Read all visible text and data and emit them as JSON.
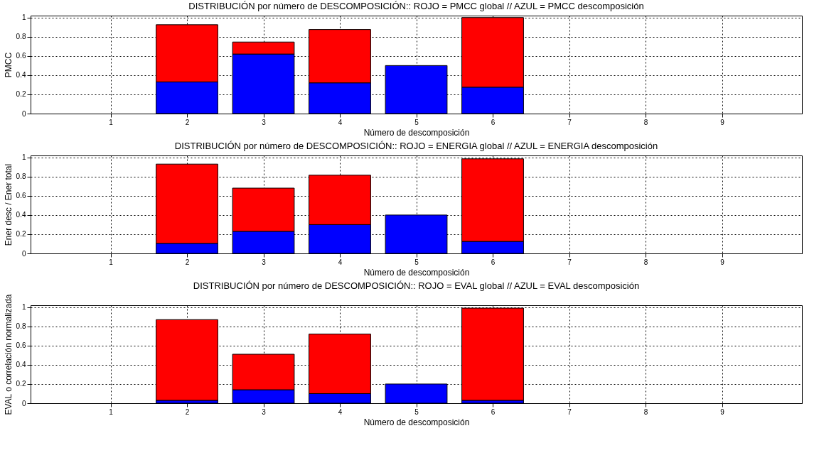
{
  "chart_data": [
    {
      "type": "bar",
      "title": "DISTRIBUCIÓN por número de DESCOMPOSICIÓN:: ROJO = PMCC global // AZUL = PMCC descomposición",
      "xlabel": "Número de descomposición",
      "ylabel": "PMCC",
      "stacked": true,
      "x": [
        2,
        3,
        4,
        5,
        6
      ],
      "xlim": [
        0,
        10
      ],
      "xticks": [
        1,
        2,
        3,
        4,
        5,
        6,
        7,
        8,
        9
      ],
      "ylim": [
        0,
        1.02
      ],
      "yticks": [
        0,
        0.2,
        0.4,
        0.6,
        0.8,
        1
      ],
      "grid": true,
      "series": [
        {
          "color": "#0000ff",
          "values": [
            0.33,
            0.62,
            0.32,
            0.5,
            0.275
          ]
        },
        {
          "color": "#ff0000",
          "values": [
            0.595,
            0.125,
            0.555,
            null,
            0.725
          ]
        }
      ]
    },
    {
      "type": "bar",
      "title": "DISTRIBUCIÓN por número de DESCOMPOSICIÓN:: ROJO = ENERGIA global // AZUL = ENERGIA descomposición",
      "xlabel": "Número de descomposición",
      "ylabel": "Ener desc / Ener total",
      "stacked": true,
      "x": [
        2,
        3,
        4,
        5,
        6
      ],
      "xlim": [
        0,
        10
      ],
      "xticks": [
        1,
        2,
        3,
        4,
        5,
        6,
        7,
        8,
        9
      ],
      "ylim": [
        0,
        1.02
      ],
      "yticks": [
        0,
        0.2,
        0.4,
        0.6,
        0.8,
        1
      ],
      "grid": true,
      "series": [
        {
          "color": "#0000ff",
          "values": [
            0.105,
            0.23,
            0.3,
            0.4,
            0.125
          ]
        },
        {
          "color": "#ff0000",
          "values": [
            0.825,
            0.45,
            0.515,
            null,
            0.86
          ]
        }
      ]
    },
    {
      "type": "bar",
      "title": "DISTRIBUCIÓN por número de DESCOMPOSICIÓN:: ROJO = EVAL global // AZUL = EVAL descomposición",
      "xlabel": "Número de descomposición",
      "ylabel": "EVAL o correlación normalizada",
      "stacked": true,
      "x": [
        2,
        3,
        4,
        5,
        6
      ],
      "xlim": [
        0,
        10
      ],
      "xticks": [
        1,
        2,
        3,
        4,
        5,
        6,
        7,
        8,
        9
      ],
      "ylim": [
        0,
        1.02
      ],
      "yticks": [
        0,
        0.2,
        0.4,
        0.6,
        0.8,
        1
      ],
      "grid": true,
      "series": [
        {
          "color": "#0000ff",
          "values": [
            0.03,
            0.14,
            0.1,
            0.2,
            0.03
          ]
        },
        {
          "color": "#ff0000",
          "values": [
            0.84,
            0.37,
            0.62,
            null,
            0.96
          ]
        }
      ]
    }
  ]
}
